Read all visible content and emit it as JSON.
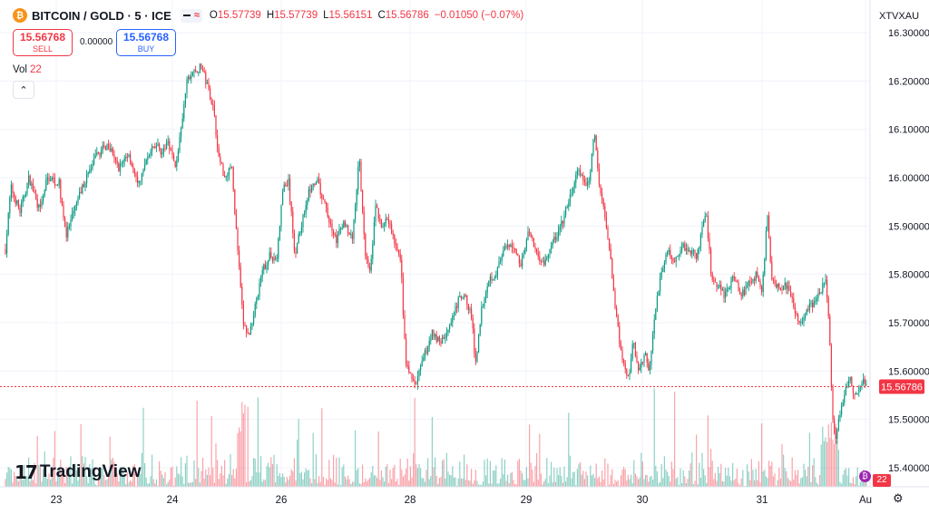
{
  "header": {
    "symbol": "BITCOIN / GOLD · 5 · ICE",
    "logo_icon": "bitcoin-logo-icon",
    "open_label": "O",
    "open": "15.57739",
    "high_label": "H",
    "high": "15.57739",
    "low_label": "L",
    "low": "15.56151",
    "close_label": "C",
    "close": "15.56786",
    "change": "−0.01050 (−0.07%)"
  },
  "trade": {
    "sell_price": "15.56768",
    "sell_label": "SELL",
    "spread": "0.00000",
    "buy_price": "15.56768",
    "buy_label": "BUY"
  },
  "volume": {
    "label": "Vol",
    "value": "22"
  },
  "ticker": "XTVXAU",
  "brand": "TradingView",
  "last_price_label": "15.56786",
  "volume_badge": "22",
  "colors": {
    "up": "#089981",
    "down": "#f23645",
    "accent": "#2962ff",
    "grid": "#f0f3fa"
  },
  "chart_data": {
    "type": "candlestick",
    "title": "BITCOIN / GOLD · 5 · ICE",
    "y_ticks": [
      "16.30000",
      "16.20000",
      "16.10000",
      "16.00000",
      "15.90000",
      "15.80000",
      "15.70000",
      "15.60000",
      "15.50000",
      "15.40000"
    ],
    "x_ticks": [
      "23",
      "24",
      "26",
      "28",
      "29",
      "30",
      "31",
      "Au"
    ],
    "ylim": [
      15.35,
      16.32
    ],
    "grid": true,
    "last_price": 15.56786,
    "price_path": [
      {
        "x": 0,
        "y": 15.86
      },
      {
        "x": 4,
        "y": 15.81
      },
      {
        "x": 12,
        "y": 15.98
      },
      {
        "x": 22,
        "y": 15.93
      },
      {
        "x": 32,
        "y": 16.0
      },
      {
        "x": 44,
        "y": 15.93
      },
      {
        "x": 52,
        "y": 16.0
      },
      {
        "x": 65,
        "y": 15.99
      },
      {
        "x": 73,
        "y": 15.88
      },
      {
        "x": 85,
        "y": 15.95
      },
      {
        "x": 95,
        "y": 16.0
      },
      {
        "x": 108,
        "y": 16.05
      },
      {
        "x": 120,
        "y": 16.07
      },
      {
        "x": 130,
        "y": 16.02
      },
      {
        "x": 142,
        "y": 16.05
      },
      {
        "x": 152,
        "y": 15.98
      },
      {
        "x": 162,
        "y": 16.04
      },
      {
        "x": 172,
        "y": 16.07
      },
      {
        "x": 180,
        "y": 16.05
      },
      {
        "x": 185,
        "y": 16.08
      },
      {
        "x": 193,
        "y": 16.02
      },
      {
        "x": 200,
        "y": 16.1
      },
      {
        "x": 206,
        "y": 16.2
      },
      {
        "x": 214,
        "y": 16.22
      },
      {
        "x": 222,
        "y": 16.23
      },
      {
        "x": 230,
        "y": 16.18
      },
      {
        "x": 236,
        "y": 16.14
      },
      {
        "x": 240,
        "y": 16.05
      },
      {
        "x": 248,
        "y": 16.0
      },
      {
        "x": 255,
        "y": 16.03
      },
      {
        "x": 262,
        "y": 15.85
      },
      {
        "x": 268,
        "y": 15.7
      },
      {
        "x": 274,
        "y": 15.67
      },
      {
        "x": 282,
        "y": 15.74
      },
      {
        "x": 290,
        "y": 15.81
      },
      {
        "x": 298,
        "y": 15.84
      },
      {
        "x": 305,
        "y": 15.83
      },
      {
        "x": 312,
        "y": 15.98
      },
      {
        "x": 318,
        "y": 15.99
      },
      {
        "x": 325,
        "y": 15.84
      },
      {
        "x": 332,
        "y": 15.9
      },
      {
        "x": 340,
        "y": 15.97
      },
      {
        "x": 350,
        "y": 15.99
      },
      {
        "x": 360,
        "y": 15.93
      },
      {
        "x": 370,
        "y": 15.87
      },
      {
        "x": 380,
        "y": 15.91
      },
      {
        "x": 388,
        "y": 15.87
      },
      {
        "x": 396,
        "y": 16.04
      },
      {
        "x": 402,
        "y": 15.85
      },
      {
        "x": 408,
        "y": 15.81
      },
      {
        "x": 414,
        "y": 15.94
      },
      {
        "x": 420,
        "y": 15.9
      },
      {
        "x": 428,
        "y": 15.91
      },
      {
        "x": 436,
        "y": 15.86
      },
      {
        "x": 442,
        "y": 15.82
      },
      {
        "x": 447,
        "y": 15.62
      },
      {
        "x": 452,
        "y": 15.59
      },
      {
        "x": 458,
        "y": 15.57
      },
      {
        "x": 466,
        "y": 15.62
      },
      {
        "x": 476,
        "y": 15.68
      },
      {
        "x": 486,
        "y": 15.66
      },
      {
        "x": 496,
        "y": 15.69
      },
      {
        "x": 506,
        "y": 15.75
      },
      {
        "x": 514,
        "y": 15.75
      },
      {
        "x": 520,
        "y": 15.71
      },
      {
        "x": 524,
        "y": 15.61
      },
      {
        "x": 530,
        "y": 15.72
      },
      {
        "x": 538,
        "y": 15.79
      },
      {
        "x": 546,
        "y": 15.8
      },
      {
        "x": 556,
        "y": 15.85
      },
      {
        "x": 566,
        "y": 15.86
      },
      {
        "x": 574,
        "y": 15.82
      },
      {
        "x": 582,
        "y": 15.89
      },
      {
        "x": 590,
        "y": 15.85
      },
      {
        "x": 600,
        "y": 15.82
      },
      {
        "x": 608,
        "y": 15.86
      },
      {
        "x": 616,
        "y": 15.89
      },
      {
        "x": 622,
        "y": 15.92
      },
      {
        "x": 630,
        "y": 15.97
      },
      {
        "x": 638,
        "y": 16.02
      },
      {
        "x": 644,
        "y": 15.98
      },
      {
        "x": 650,
        "y": 16.0
      },
      {
        "x": 655,
        "y": 16.1
      },
      {
        "x": 660,
        "y": 15.99
      },
      {
        "x": 666,
        "y": 15.93
      },
      {
        "x": 672,
        "y": 15.85
      },
      {
        "x": 680,
        "y": 15.7
      },
      {
        "x": 686,
        "y": 15.62
      },
      {
        "x": 692,
        "y": 15.58
      },
      {
        "x": 698,
        "y": 15.66
      },
      {
        "x": 704,
        "y": 15.59
      },
      {
        "x": 710,
        "y": 15.64
      },
      {
        "x": 716,
        "y": 15.6
      },
      {
        "x": 722,
        "y": 15.72
      },
      {
        "x": 728,
        "y": 15.8
      },
      {
        "x": 736,
        "y": 15.85
      },
      {
        "x": 744,
        "y": 15.83
      },
      {
        "x": 752,
        "y": 15.86
      },
      {
        "x": 760,
        "y": 15.85
      },
      {
        "x": 768,
        "y": 15.84
      },
      {
        "x": 774,
        "y": 15.89
      },
      {
        "x": 778,
        "y": 15.93
      },
      {
        "x": 784,
        "y": 15.8
      },
      {
        "x": 790,
        "y": 15.78
      },
      {
        "x": 798,
        "y": 15.76
      },
      {
        "x": 808,
        "y": 15.79
      },
      {
        "x": 818,
        "y": 15.76
      },
      {
        "x": 826,
        "y": 15.78
      },
      {
        "x": 834,
        "y": 15.8
      },
      {
        "x": 840,
        "y": 15.76
      },
      {
        "x": 846,
        "y": 15.93
      },
      {
        "x": 850,
        "y": 15.8
      },
      {
        "x": 858,
        "y": 15.77
      },
      {
        "x": 866,
        "y": 15.78
      },
      {
        "x": 874,
        "y": 15.74
      },
      {
        "x": 880,
        "y": 15.7
      },
      {
        "x": 888,
        "y": 15.72
      },
      {
        "x": 896,
        "y": 15.74
      },
      {
        "x": 904,
        "y": 15.76
      },
      {
        "x": 910,
        "y": 15.79
      },
      {
        "x": 914,
        "y": 15.7
      },
      {
        "x": 916,
        "y": 15.58
      },
      {
        "x": 918,
        "y": 15.5
      },
      {
        "x": 921,
        "y": 15.45
      },
      {
        "x": 925,
        "y": 15.5
      },
      {
        "x": 930,
        "y": 15.54
      },
      {
        "x": 936,
        "y": 15.59
      },
      {
        "x": 942,
        "y": 15.55
      },
      {
        "x": 948,
        "y": 15.56
      },
      {
        "x": 952,
        "y": 15.58
      },
      {
        "x": 956,
        "y": 15.568
      }
    ]
  }
}
